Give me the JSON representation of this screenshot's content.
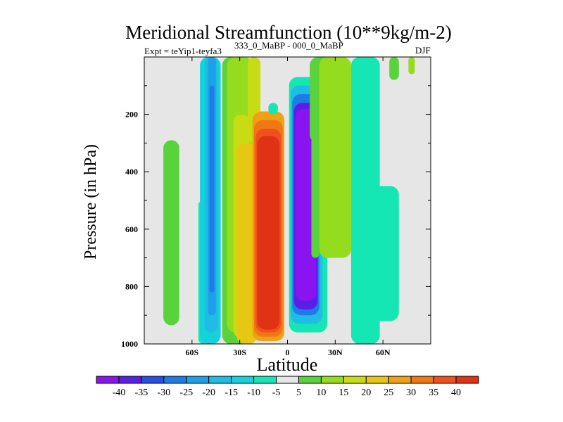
{
  "chart_data": {
    "type": "contour",
    "title": "Meridional Streamfunction (10**9kg/m-2)",
    "experiment": "Expt = teYip1-teyfa3",
    "superscript": "333_0_MaBP - 000_0_MaBP",
    "season": "DJF",
    "xlabel": "Latitude",
    "ylabel": "Pressure (in hPa)",
    "xlim": [
      -90,
      90
    ],
    "ylim": [
      1000,
      0
    ],
    "xticks": [
      {
        "value": -60,
        "label": "60S"
      },
      {
        "value": -30,
        "label": "30S"
      },
      {
        "value": 0,
        "label": "0"
      },
      {
        "value": 30,
        "label": "30N"
      },
      {
        "value": 60,
        "label": "60N"
      }
    ],
    "yticks": [
      {
        "value": 200,
        "label": "200"
      },
      {
        "value": 400,
        "label": "400"
      },
      {
        "value": 600,
        "label": "600"
      },
      {
        "value": 800,
        "label": "800"
      },
      {
        "value": 1000,
        "label": "1000"
      }
    ],
    "colorbar": {
      "levels": [
        -40,
        -35,
        -30,
        -25,
        -20,
        -15,
        -10,
        -5,
        5,
        10,
        15,
        20,
        25,
        30,
        35,
        40
      ],
      "colors": [
        "#8a14f0",
        "#5a1ee6",
        "#2850e0",
        "#1e7ce6",
        "#1ea0e8",
        "#20bce6",
        "#14d2dc",
        "#14e6b4",
        "#e6e6e6",
        "#5ad23c",
        "#96dc1e",
        "#c8dc14",
        "#e6c814",
        "#f0a014",
        "#f07814",
        "#f0501e",
        "#e03214"
      ]
    },
    "cells": [
      {
        "lat": [
          -78,
          -68
        ],
        "p": [
          290,
          935
        ],
        "level": 9
      },
      {
        "lat": [
          -58,
          -54
        ],
        "p": [
          600,
          1000
        ],
        "level": 8
      },
      {
        "lat": [
          -56,
          -50
        ],
        "p": [
          500,
          1000
        ],
        "level": 7
      },
      {
        "lat": [
          -55,
          -42
        ],
        "p": [
          0,
          1000
        ],
        "level": 6
      },
      {
        "lat": [
          -52,
          -44
        ],
        "p": [
          0,
          960
        ],
        "level": 5
      },
      {
        "lat": [
          -50,
          -45
        ],
        "p": [
          0,
          900
        ],
        "level": 4
      },
      {
        "lat": [
          -49,
          -46
        ],
        "p": [
          100,
          820
        ],
        "level": 3
      },
      {
        "lat": [
          -41,
          -22
        ],
        "p": [
          0,
          1000
        ],
        "level": 9
      },
      {
        "lat": [
          -38,
          -22
        ],
        "p": [
          0,
          960
        ],
        "level": 10
      },
      {
        "lat": [
          -34,
          -24
        ],
        "p": [
          200,
          980
        ],
        "level": 11
      },
      {
        "lat": [
          -32,
          -19
        ],
        "p": [
          300,
          1000
        ],
        "level": 12
      },
      {
        "lat": [
          -25,
          -17
        ],
        "p": [
          0,
          300
        ],
        "level": 11
      },
      {
        "lat": [
          -22,
          -2
        ],
        "p": [
          190,
          990
        ],
        "level": 13
      },
      {
        "lat": [
          -21,
          -3
        ],
        "p": [
          220,
          975
        ],
        "level": 14
      },
      {
        "lat": [
          -20,
          -4
        ],
        "p": [
          250,
          960
        ],
        "level": 15
      },
      {
        "lat": [
          -19,
          -5
        ],
        "p": [
          275,
          950
        ],
        "level": 16
      },
      {
        "lat": [
          1,
          25
        ],
        "p": [
          70,
          960
        ],
        "level": 7
      },
      {
        "lat": [
          2,
          22
        ],
        "p": [
          100,
          930
        ],
        "level": 5
      },
      {
        "lat": [
          3,
          20
        ],
        "p": [
          130,
          900
        ],
        "level": 3
      },
      {
        "lat": [
          4,
          19
        ],
        "p": [
          160,
          880
        ],
        "level": 1
      },
      {
        "lat": [
          5,
          18
        ],
        "p": [
          180,
          850
        ],
        "level": 0
      },
      {
        "lat": [
          14,
          28
        ],
        "p": [
          0,
          300
        ],
        "level": 9
      },
      {
        "lat": [
          15,
          20
        ],
        "p": [
          280,
          700
        ],
        "level": 9
      },
      {
        "lat": [
          20,
          40
        ],
        "p": [
          0,
          700
        ],
        "level": 10
      },
      {
        "lat": [
          40,
          58
        ],
        "p": [
          0,
          1000
        ],
        "level": 7
      },
      {
        "lat": [
          44,
          70
        ],
        "p": [
          450,
          920
        ],
        "level": 7
      },
      {
        "lat": [
          64,
          70
        ],
        "p": [
          0,
          80
        ],
        "level": 9
      },
      {
        "lat": [
          76,
          80
        ],
        "p": [
          0,
          60
        ],
        "level": 10
      },
      {
        "lat": [
          -12,
          -6
        ],
        "p": [
          160,
          200
        ],
        "level": 7
      }
    ]
  }
}
